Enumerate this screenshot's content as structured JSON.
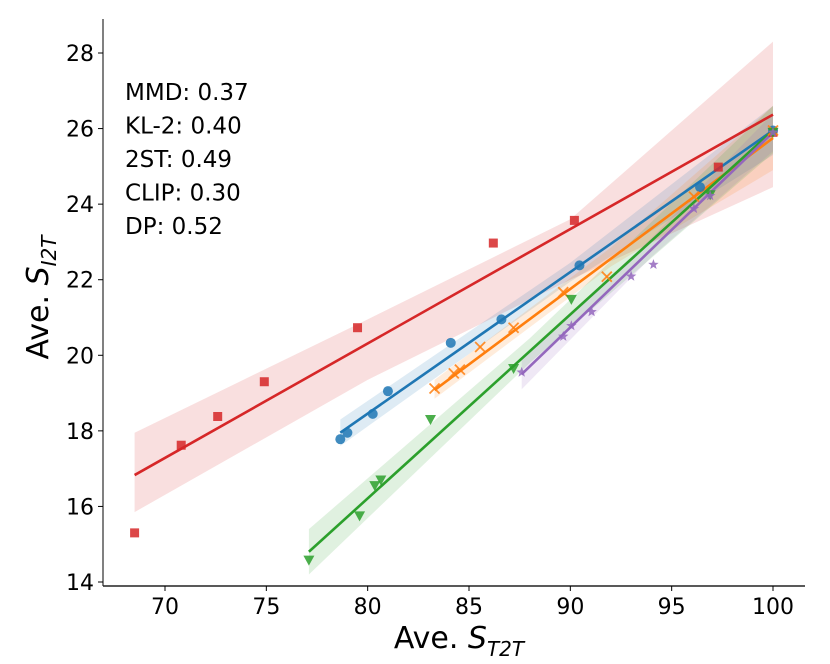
{
  "chart_data": {
    "type": "scatter",
    "title": "",
    "xlabel": {
      "prefix": "Ave. ",
      "symbol": "S",
      "subscript": "T2T"
    },
    "ylabel": {
      "prefix": "Ave. ",
      "symbol": "S",
      "subscript": "I2T"
    },
    "xlim": [
      67,
      101.5
    ],
    "ylim": [
      13.85,
      28.9
    ],
    "xticks": [
      70,
      75,
      80,
      85,
      90,
      95,
      100
    ],
    "yticks": [
      14,
      16,
      18,
      20,
      22,
      24,
      26,
      28
    ],
    "grid": false,
    "legend": null,
    "annotations": [
      "MMD: 0.37",
      "KL-2: 0.40",
      "2ST: 0.49",
      "CLIP: 0.30",
      "DP: 0.52"
    ],
    "annotation_placement": "top-left",
    "series": [
      {
        "name": "MMD",
        "color": "#d62728",
        "marker": "square",
        "points": [
          [
            68.5,
            15.3
          ],
          [
            70.8,
            17.62
          ],
          [
            72.6,
            18.38
          ],
          [
            74.9,
            19.3
          ],
          [
            79.5,
            20.73
          ],
          [
            86.2,
            22.97
          ],
          [
            90.2,
            23.57
          ],
          [
            97.3,
            24.98
          ],
          [
            100,
            25.9
          ]
        ],
        "fit": {
          "x": [
            68.5,
            100
          ],
          "y": [
            16.83,
            26.37
          ]
        },
        "ci": {
          "x": [
            68.5,
            80,
            90,
            100
          ],
          "lower": [
            15.85,
            19.35,
            22.0,
            24.45
          ],
          "upper": [
            17.95,
            20.95,
            23.6,
            28.3
          ]
        }
      },
      {
        "name": "KL-2",
        "color": "#1f77b4",
        "marker": "circle",
        "points": [
          [
            78.65,
            17.78
          ],
          [
            79.0,
            17.95
          ],
          [
            80.25,
            18.45
          ],
          [
            81.0,
            19.05
          ],
          [
            84.1,
            20.33
          ],
          [
            86.6,
            20.95
          ],
          [
            90.45,
            22.38
          ],
          [
            96.4,
            24.45
          ],
          [
            100,
            25.95
          ]
        ],
        "fit": {
          "x": [
            78.65,
            100
          ],
          "y": [
            17.95,
            25.95
          ]
        },
        "ci": {
          "x": [
            78.65,
            90,
            100
          ],
          "lower": [
            17.6,
            21.95,
            25.3
          ],
          "upper": [
            18.3,
            22.45,
            26.6
          ]
        }
      },
      {
        "name": "2ST",
        "color": "#ff7f0e",
        "marker": "x",
        "points": [
          [
            83.3,
            19.12
          ],
          [
            84.25,
            19.52
          ],
          [
            84.55,
            19.62
          ],
          [
            85.55,
            20.22
          ],
          [
            87.2,
            20.73
          ],
          [
            89.65,
            21.67
          ],
          [
            91.8,
            22.08
          ],
          [
            96.1,
            24.2
          ],
          [
            100,
            25.95
          ]
        ],
        "fit": {
          "x": [
            83.3,
            100
          ],
          "y": [
            19.08,
            25.75
          ]
        },
        "ci": {
          "x": [
            83.3,
            92,
            100
          ],
          "lower": [
            18.85,
            22.35,
            24.9
          ],
          "upper": [
            19.35,
            22.85,
            26.6
          ]
        }
      },
      {
        "name": "CLIP",
        "color": "#2ca02c",
        "marker": "triangle-down",
        "points": [
          [
            77.1,
            14.58
          ],
          [
            79.6,
            15.75
          ],
          [
            80.35,
            16.55
          ],
          [
            80.65,
            16.7
          ],
          [
            83.1,
            18.3
          ],
          [
            87.2,
            19.65
          ],
          [
            90.05,
            21.48
          ],
          [
            96.9,
            24.25
          ],
          [
            100,
            25.9
          ]
        ],
        "fit": {
          "x": [
            77.1,
            100
          ],
          "y": [
            14.8,
            25.95
          ]
        },
        "ci": {
          "x": [
            77.1,
            88,
            100
          ],
          "lower": [
            14.2,
            19.8,
            25.35
          ],
          "upper": [
            15.4,
            20.45,
            26.6
          ]
        }
      },
      {
        "name": "DP",
        "color": "#9467bd",
        "marker": "star",
        "points": [
          [
            87.6,
            19.55
          ],
          [
            89.65,
            20.5
          ],
          [
            90.05,
            20.78
          ],
          [
            91.05,
            21.15
          ],
          [
            93.0,
            22.09
          ],
          [
            94.1,
            22.4
          ],
          [
            96.1,
            23.88
          ],
          [
            96.9,
            24.22
          ],
          [
            100,
            25.9
          ]
        ],
        "fit": {
          "x": [
            87.6,
            100
          ],
          "y": [
            19.5,
            25.9
          ]
        },
        "ci": {
          "x": [
            87.6,
            94,
            100
          ],
          "lower": [
            19.1,
            22.6,
            25.4
          ],
          "upper": [
            19.9,
            23.1,
            26.4
          ]
        }
      }
    ]
  }
}
